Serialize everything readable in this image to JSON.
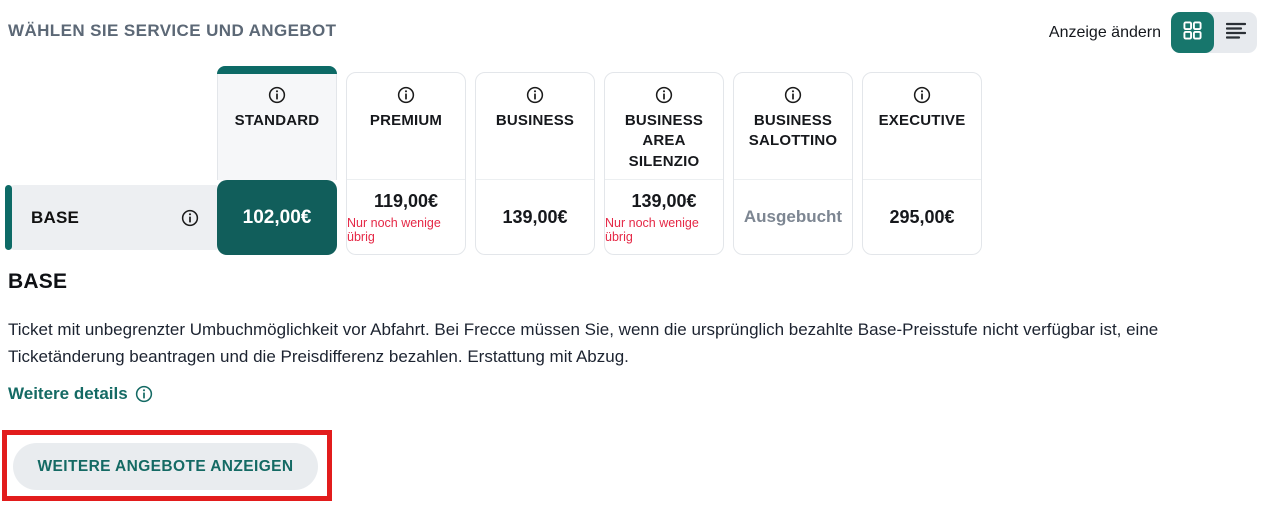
{
  "colors": {
    "teal-cell": "#115e5b",
    "teal-accent": "#0d6a66",
    "teal-toggle": "#17766c",
    "teal-text": "#146a64",
    "note-red": "#e52846",
    "annotation-red": "#e21c1c"
  },
  "header": {
    "title": "WÄHLEN SIE SERVICE UND ANGEBOT",
    "view_toggle": {
      "label": "Anzeige ändern",
      "active_view": "grid",
      "icons": [
        "grid-view-icon",
        "list-view-icon"
      ]
    }
  },
  "table": {
    "columns": [
      {
        "label": "STANDARD",
        "icon": "info-icon",
        "selected": true
      },
      {
        "label": "PREMIUM",
        "icon": "info-icon",
        "selected": false
      },
      {
        "label": "BUSINESS",
        "icon": "info-icon",
        "selected": false
      },
      {
        "label": "BUSINESS AREA SILENZIO",
        "icon": "info-icon",
        "selected": false
      },
      {
        "label": "BUSINESS SALOTTINO",
        "icon": "info-icon",
        "selected": false
      },
      {
        "label": "EXECUTIVE",
        "icon": "info-icon",
        "selected": false
      }
    ],
    "row": {
      "label": "BASE",
      "icon": "info-icon",
      "cells": [
        {
          "price": "102,00€",
          "selected": true
        },
        {
          "price": "119,00€",
          "note": "Nur noch wenige übrig"
        },
        {
          "price": "139,00€"
        },
        {
          "price": "139,00€",
          "note": "Nur noch wenige übrig"
        },
        {
          "status": "Ausgebucht"
        },
        {
          "price": "295,00€"
        }
      ]
    }
  },
  "details": {
    "heading": "BASE",
    "description": "Ticket mit unbegrenzter Umbuchmöglichkeit vor Abfahrt. Bei Frecce müssen Sie, wenn die ursprünglich bezahlte Base-Preisstufe nicht verfügbar ist, eine Ticketänderung beantragen und die Preisdifferenz bezahlen. Erstattung mit Abzug.",
    "more_details_label": "Weitere details",
    "more_details_icon": "info-icon"
  },
  "cta": {
    "label": "WEITERE ANGEBOTE ANZEIGEN",
    "annotated": true
  }
}
